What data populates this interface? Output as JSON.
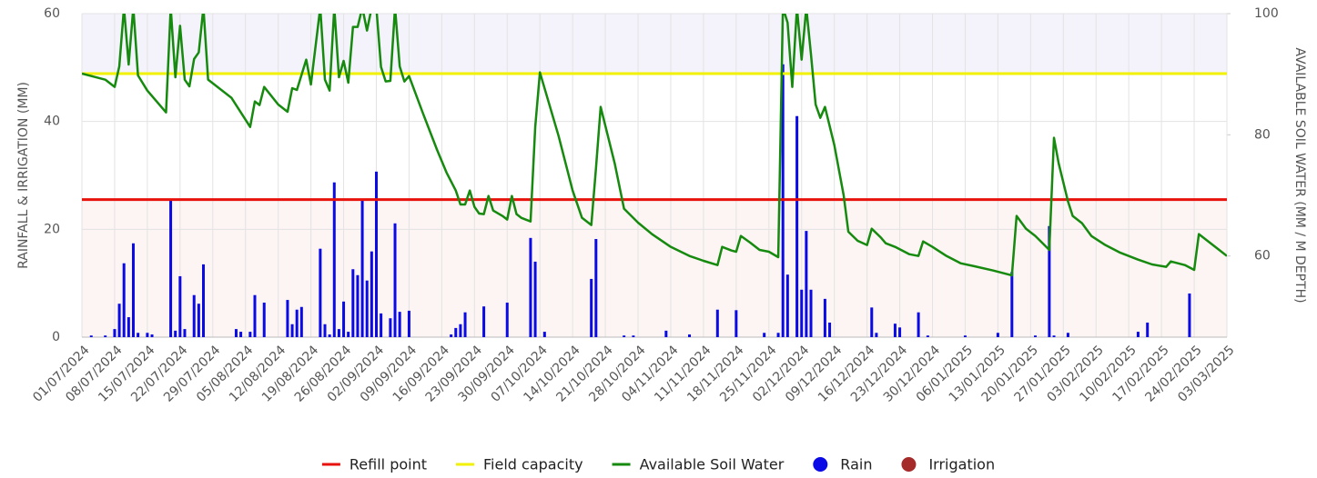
{
  "chart_data": {
    "type": "combo",
    "y_label": "RAINFALL & IRRIGATION (MM)",
    "y2_label": "AVAILABLE SOIL WATER (MM / M DEPTH)",
    "ylim": [
      0,
      60
    ],
    "yticks": [
      0,
      20,
      40,
      60
    ],
    "y2lim": [
      46.6,
      100
    ],
    "y2ticks": [
      60,
      80,
      100
    ],
    "xlim": [
      "01/07/2024",
      "03/03/2025"
    ],
    "xticks": [
      "01/07/2024",
      "08/07/2024",
      "15/07/2024",
      "22/07/2024",
      "29/07/2024",
      "05/08/2024",
      "12/08/2024",
      "19/08/2024",
      "26/08/2024",
      "02/09/2024",
      "09/09/2024",
      "16/09/2024",
      "23/09/2024",
      "30/09/2024",
      "07/10/2024",
      "14/10/2024",
      "21/10/2024",
      "28/10/2024",
      "04/11/2024",
      "11/11/2024",
      "18/11/2024",
      "25/11/2024",
      "02/12/2024",
      "09/12/2024",
      "16/12/2024",
      "23/12/2024",
      "30/12/2024",
      "06/01/2025",
      "13/01/2025",
      "20/01/2025",
      "27/01/2025",
      "03/02/2025",
      "10/02/2025",
      "17/02/2025",
      "24/02/2025",
      "03/03/2025"
    ],
    "grid": true,
    "legend": "bottom",
    "series": [
      {
        "name": "Refill point",
        "type": "hline",
        "axis": "y2",
        "color": "#e8120c",
        "value": 69.3
      },
      {
        "name": "Field capacity",
        "type": "hline",
        "axis": "y2",
        "color": "#f2f200",
        "value": 90.1
      },
      {
        "name": "Available Soil Water",
        "type": "line",
        "axis": "y2",
        "color": "#168a0e",
        "x": [
          "01/07/2024",
          "06/07/2024",
          "08/07/2024",
          "09/07/2024",
          "10/07/2024",
          "11/07/2024",
          "12/07/2024",
          "13/07/2024",
          "15/07/2024",
          "19/07/2024",
          "20/07/2024",
          "21/07/2024",
          "22/07/2024",
          "23/07/2024",
          "24/07/2024",
          "25/07/2024",
          "26/07/2024",
          "27/07/2024",
          "28/07/2024",
          "02/08/2024",
          "06/08/2024",
          "07/08/2024",
          "08/08/2024",
          "09/08/2024",
          "12/08/2024",
          "14/08/2024",
          "15/08/2024",
          "16/08/2024",
          "18/08/2024",
          "19/08/2024",
          "21/08/2024",
          "22/08/2024",
          "23/08/2024",
          "24/08/2024",
          "25/08/2024",
          "26/08/2024",
          "27/08/2024",
          "28/08/2024",
          "29/08/2024",
          "30/08/2024",
          "31/08/2024",
          "01/09/2024",
          "02/09/2024",
          "03/09/2024",
          "04/09/2024",
          "05/09/2024",
          "06/09/2024",
          "07/09/2024",
          "08/09/2024",
          "09/09/2024",
          "12/09/2024",
          "15/09/2024",
          "17/09/2024",
          "19/09/2024",
          "20/09/2024",
          "21/09/2024",
          "22/09/2024",
          "23/09/2024",
          "24/09/2024",
          "25/09/2024",
          "26/09/2024",
          "27/09/2024",
          "29/09/2024",
          "30/09/2024",
          "01/10/2024",
          "02/10/2024",
          "03/10/2024",
          "05/10/2024",
          "06/10/2024",
          "07/10/2024",
          "11/10/2024",
          "14/10/2024",
          "16/10/2024",
          "18/10/2024",
          "19/10/2024",
          "20/10/2024",
          "23/10/2024",
          "25/10/2024",
          "28/10/2024",
          "31/10/2024",
          "04/11/2024",
          "08/11/2024",
          "11/11/2024",
          "14/11/2024",
          "15/11/2024",
          "17/11/2024",
          "18/11/2024",
          "19/11/2024",
          "21/11/2024",
          "23/11/2024",
          "25/11/2024",
          "27/11/2024",
          "28/11/2024",
          "29/11/2024",
          "30/11/2024",
          "01/12/2024",
          "02/12/2024",
          "03/12/2024",
          "04/12/2024",
          "05/12/2024",
          "06/12/2024",
          "07/12/2024",
          "09/12/2024",
          "11/12/2024",
          "12/12/2024",
          "14/12/2024",
          "16/12/2024",
          "17/12/2024",
          "19/12/2024",
          "20/12/2024",
          "21/12/2024",
          "22/12/2024",
          "25/12/2024",
          "27/12/2024",
          "28/12/2024",
          "30/12/2024",
          "02/01/2025",
          "05/01/2025",
          "08/01/2025",
          "12/01/2025",
          "15/01/2025",
          "16/01/2025",
          "17/01/2025",
          "19/01/2025",
          "21/01/2025",
          "24/01/2025",
          "25/01/2025",
          "26/01/2025",
          "28/01/2025",
          "29/01/2025",
          "31/01/2025",
          "02/02/2025",
          "05/02/2025",
          "08/02/2025",
          "12/02/2025",
          "15/02/2025",
          "18/02/2025",
          "19/02/2025",
          "22/02/2025",
          "24/02/2025",
          "25/02/2025",
          "27/02/2025",
          "01/03/2025",
          "03/03/2025"
        ],
        "values": [
          90.1,
          89.1,
          87.9,
          91.3,
          101,
          91.6,
          101,
          89.8,
          87.3,
          83.7,
          101,
          89.5,
          98,
          89.1,
          88,
          92.5,
          93.6,
          101,
          89.1,
          86.1,
          81.3,
          85.5,
          84.9,
          87.9,
          85,
          83.8,
          87.7,
          87.4,
          92.4,
          88.3,
          101,
          89.1,
          87.3,
          101,
          89.5,
          92.2,
          88.6,
          97.8,
          97.8,
          101,
          97.2,
          101,
          101,
          91.2,
          88.8,
          88.9,
          101,
          91.3,
          88.8,
          89.7,
          83.5,
          77.5,
          73.8,
          70.8,
          68.5,
          68.5,
          70.8,
          68.1,
          67,
          66.9,
          69.9,
          67.5,
          66.6,
          66,
          69.9,
          66.9,
          66.3,
          65.7,
          81.3,
          90.3,
          79.8,
          70.8,
          66.3,
          65.1,
          74.5,
          84.6,
          75.3,
          67.8,
          65.5,
          63.6,
          61.5,
          60,
          59.2,
          58.5,
          61.5,
          60.9,
          60.7,
          63.3,
          62.2,
          61,
          60.7,
          59.8,
          101,
          98.5,
          87.9,
          101,
          92.4,
          101,
          93.3,
          85,
          82.8,
          84.6,
          78.3,
          70,
          64,
          62.5,
          61.8,
          64.5,
          63,
          62.1,
          61.8,
          61.5,
          60.3,
          60,
          62.4,
          61.5,
          60,
          58.8,
          58.3,
          57.6,
          57,
          56.8,
          66.6,
          64.5,
          63.3,
          61,
          79.5,
          75.3,
          69,
          66.6,
          65.4,
          63.3,
          61.8,
          60.6,
          59.4,
          58.6,
          58.2,
          59.1,
          58.5,
          57.7,
          63.6,
          62.4,
          61.2,
          60
        ]
      },
      {
        "name": "Rain",
        "type": "bar",
        "axis": "y",
        "color": "#0a0ae6",
        "x": [
          "03/07/2024",
          "06/07/2024",
          "08/07/2024",
          "09/07/2024",
          "10/07/2024",
          "11/07/2024",
          "12/07/2024",
          "13/07/2024",
          "15/07/2024",
          "16/07/2024",
          "20/07/2024",
          "21/07/2024",
          "22/07/2024",
          "23/07/2024",
          "25/07/2024",
          "26/07/2024",
          "27/07/2024",
          "03/08/2024",
          "04/08/2024",
          "06/08/2024",
          "07/08/2024",
          "09/08/2024",
          "14/08/2024",
          "15/08/2024",
          "16/08/2024",
          "17/08/2024",
          "21/08/2024",
          "22/08/2024",
          "23/08/2024",
          "24/08/2024",
          "25/08/2024",
          "26/08/2024",
          "27/08/2024",
          "28/08/2024",
          "29/08/2024",
          "30/08/2024",
          "31/08/2024",
          "01/09/2024",
          "02/09/2024",
          "03/09/2024",
          "05/09/2024",
          "06/09/2024",
          "07/09/2024",
          "09/09/2024",
          "18/09/2024",
          "19/09/2024",
          "20/09/2024",
          "21/09/2024",
          "25/09/2024",
          "30/09/2024",
          "05/10/2024",
          "06/10/2024",
          "08/10/2024",
          "18/10/2024",
          "19/10/2024",
          "25/10/2024",
          "27/10/2024",
          "03/11/2024",
          "08/11/2024",
          "14/11/2024",
          "18/11/2024",
          "24/11/2024",
          "27/11/2024",
          "28/11/2024",
          "29/11/2024",
          "01/12/2024",
          "02/12/2024",
          "03/12/2024",
          "04/12/2024",
          "07/12/2024",
          "08/12/2024",
          "17/12/2024",
          "18/12/2024",
          "22/12/2024",
          "23/12/2024",
          "27/12/2024",
          "29/12/2024",
          "06/01/2025",
          "13/01/2025",
          "16/01/2025",
          "21/01/2025",
          "24/01/2025",
          "25/01/2025",
          "28/01/2025",
          "12/02/2025",
          "14/02/2025",
          "23/02/2025"
        ],
        "values": [
          0.3,
          0.3,
          1.5,
          6.2,
          13.7,
          3.7,
          17.4,
          0.8,
          0.8,
          0.5,
          25.3,
          1.2,
          11.3,
          1.5,
          7.8,
          6.2,
          13.5,
          1.5,
          1,
          1,
          7.8,
          6.4,
          6.9,
          2.4,
          5.1,
          5.6,
          16.4,
          2.4,
          0.5,
          28.7,
          1.5,
          6.6,
          1,
          12.6,
          11.5,
          25.3,
          10.5,
          15.9,
          30.7,
          4.4,
          3.5,
          21.1,
          4.7,
          4.9,
          0.5,
          1.7,
          2.4,
          4.6,
          5.7,
          6.4,
          18.4,
          14,
          1,
          10.8,
          18.2,
          0.3,
          0.3,
          1.2,
          0.5,
          5.1,
          5,
          0.8,
          0.8,
          50.6,
          11.6,
          41,
          8.8,
          19.7,
          8.8,
          7.1,
          2.7,
          5.5,
          0.8,
          2.5,
          1.8,
          4.6,
          0.3,
          0.3,
          0.8,
          12.1,
          0.3,
          20.6,
          0.3,
          0.8,
          1,
          2.7,
          8.1
        ]
      },
      {
        "name": "Irrigation",
        "type": "bar",
        "axis": "y",
        "color": "#a52a2a",
        "x": [],
        "values": []
      }
    ]
  }
}
